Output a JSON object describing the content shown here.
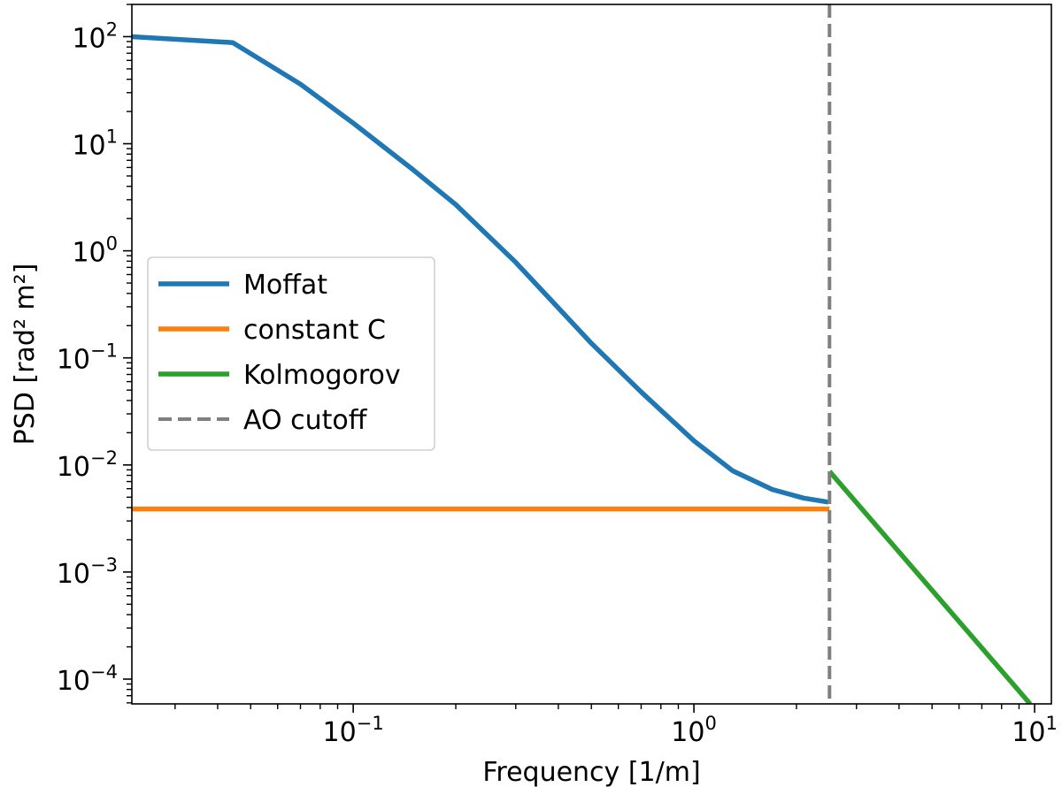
{
  "chart_data": {
    "type": "line",
    "title": "",
    "xlabel": "Frequency [1/m]",
    "ylabel": "PSD [rad² m²]",
    "xscale": "log",
    "yscale": "log",
    "xlim": [
      0.0224,
      11.2
    ],
    "ylim": [
      5.87e-05,
      200
    ],
    "grid": false,
    "legend_position": "center-left",
    "x_ticks": [
      {
        "value": 0.1,
        "base": "10",
        "exp": "−1"
      },
      {
        "value": 1,
        "base": "10",
        "exp": "0"
      },
      {
        "value": 10,
        "base": "10",
        "exp": "1"
      }
    ],
    "y_ticks": [
      {
        "value": 100,
        "base": "10",
        "exp": "2"
      },
      {
        "value": 10,
        "base": "10",
        "exp": "1"
      },
      {
        "value": 1,
        "base": "10",
        "exp": "0"
      },
      {
        "value": 0.1,
        "base": "10",
        "exp": "−1"
      },
      {
        "value": 0.01,
        "base": "10",
        "exp": "−2"
      },
      {
        "value": 0.001,
        "base": "10",
        "exp": "−3"
      },
      {
        "value": 0.0001,
        "base": "10",
        "exp": "−4"
      }
    ],
    "series": [
      {
        "name": "Moffat",
        "color": "#1f77b4",
        "style": "solid",
        "x": [
          0.0224,
          0.0443,
          0.07,
          0.1,
          0.15,
          0.2,
          0.3,
          0.5,
          0.7,
          1.0,
          1.3,
          1.7,
          2.1,
          2.48
        ],
        "y": [
          100,
          88,
          36,
          15.6,
          5.7,
          2.7,
          0.78,
          0.137,
          0.048,
          0.0168,
          0.0088,
          0.0059,
          0.0049,
          0.0045
        ]
      },
      {
        "name": "constant C",
        "color": "#ff7f0e",
        "style": "solid",
        "x": [
          0.0224,
          2.5
        ],
        "y": [
          0.00388,
          0.00388
        ]
      },
      {
        "name": "Kolmogorov",
        "color": "#2ca02c",
        "style": "solid",
        "x": [
          2.5,
          9.7
        ],
        "y": [
          0.0087,
          5.87e-05
        ]
      },
      {
        "name": "AO cutoff",
        "color": "#7f7f7f",
        "style": "dashed",
        "vertical_x": 2.5
      }
    ]
  }
}
